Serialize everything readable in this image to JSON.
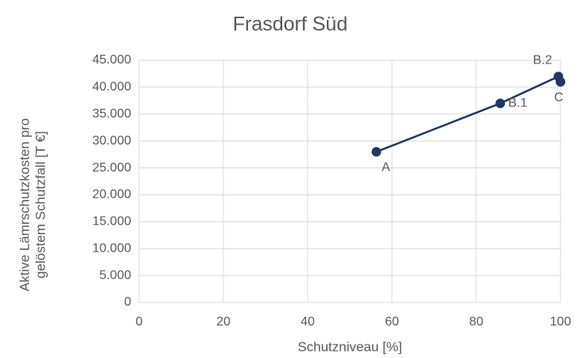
{
  "chart_data": {
    "type": "scatter",
    "title": "Frasdorf Süd",
    "x_label": "Schutzniveau [%]",
    "y_label": [
      "Aktive Lämrschutzkosten pro",
      "gelöstem Schutzfall [T €]"
    ],
    "series": [
      {
        "color": "#203864",
        "x": [
          56.3,
          85.7,
          99.5,
          100
        ],
        "values": [
          28000,
          37000,
          42000,
          41000
        ],
        "point_labels": [
          "A",
          "B.1",
          "B.2",
          "C"
        ]
      }
    ],
    "xlim": [
      0,
      100
    ],
    "xticks": [
      0,
      20,
      40,
      60,
      80,
      100
    ],
    "ylim": [
      0,
      45000
    ],
    "yticks": [
      0,
      {
        "value": 5000,
        "label": "5.000"
      },
      {
        "value": 10000,
        "label": "10.000"
      },
      {
        "value": 15000,
        "label": "15.000"
      },
      {
        "value": 20000,
        "label": "20.000"
      },
      {
        "value": 25000,
        "label": "25.000"
      },
      {
        "value": 30000,
        "label": "30.000"
      },
      {
        "value": 35000,
        "label": "35.000"
      },
      {
        "value": 40000,
        "label": "40.000"
      },
      {
        "value": 45000,
        "label": "45.000"
      }
    ],
    "grid": true,
    "lines": true
  }
}
